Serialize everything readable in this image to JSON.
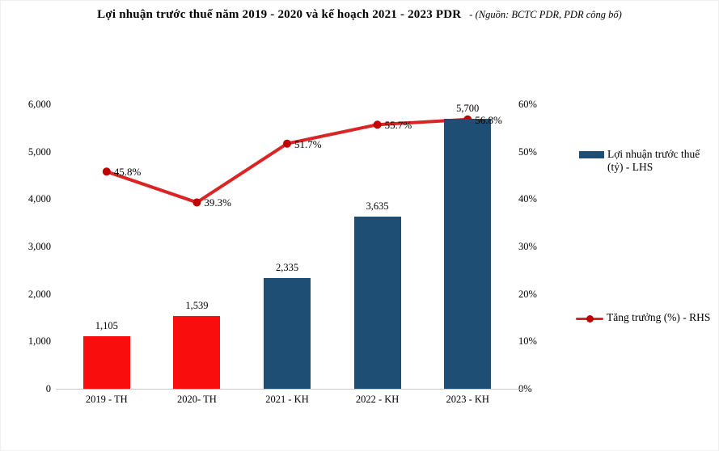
{
  "header": {
    "title": "Lợi nhuận trước thuế năm 2019 - 2020 và kế hoạch 2021 - 2023 PDR",
    "source_note": "- (Nguồn: BCTC PDR, PDR công bố)"
  },
  "colors": {
    "bar_actual_red": "#f90d0d",
    "bar_plan_blue": "#1f4e74",
    "line_red": "#d92525",
    "marker_red": "#c00000",
    "axis_line_gray": "#c9c9c9",
    "text_black": "#000000"
  },
  "legend": {
    "items": [
      {
        "label": "Lợi nhuận trước thuế (tỷ) - LHS",
        "swatch": "bar",
        "color": "#1f4e74"
      },
      {
        "label": "Tăng trưởng (%) - RHS",
        "swatch": "line",
        "color": "#d92525"
      }
    ],
    "position": "right"
  },
  "chart_data": {
    "type": "bar+line combo",
    "title": "Lợi nhuận trước thuế năm 2019 - 2020 và kế hoạch 2021 - 2023 PDR",
    "source": "Nguồn: BCTC PDR, PDR công bố",
    "categories": [
      "2019 - TH",
      "2020- TH",
      "2021 - KH",
      "2022 - KH",
      "2023 - KH"
    ],
    "series": [
      {
        "name": "Lợi nhuận trước thuế (tỷ) - LHS",
        "type": "bar",
        "axis": "left",
        "values": [
          1105,
          1539,
          2335,
          3635,
          5700
        ],
        "value_labels": [
          "1,105",
          "1,539",
          "2,335",
          "3,635",
          "5,700"
        ],
        "bar_colors": [
          "#f90d0d",
          "#f90d0d",
          "#1f4e74",
          "#1f4e74",
          "#1f4e74"
        ]
      },
      {
        "name": "Tăng trưởng (%) - RHS",
        "type": "line",
        "axis": "right",
        "values": [
          45.8,
          39.3,
          51.7,
          55.7,
          56.8
        ],
        "value_labels": [
          "45.8%",
          "39.3%",
          "51.7%",
          "55.7%",
          "56.8%"
        ]
      }
    ],
    "left_axis": {
      "min": 0,
      "max": 6000,
      "step": 1000,
      "tick_labels": [
        "0",
        "1,000",
        "2,000",
        "3,000",
        "4,000",
        "5,000",
        "6,000"
      ]
    },
    "right_axis": {
      "min": 0,
      "max": 60,
      "step": 10,
      "tick_labels": [
        "0%",
        "10%",
        "20%",
        "30%",
        "40%",
        "50%",
        "60%"
      ]
    },
    "grid": false,
    "legend_position": "right"
  }
}
